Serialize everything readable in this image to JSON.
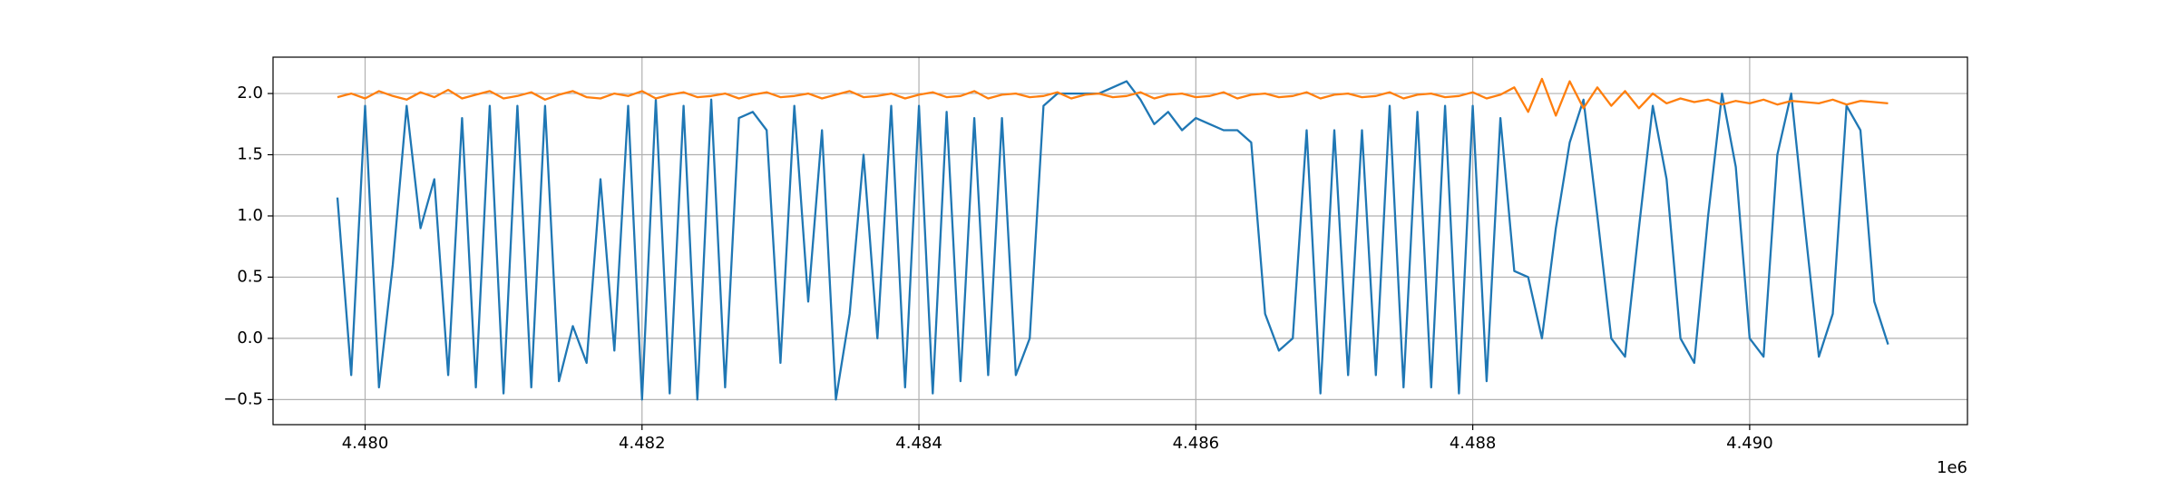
{
  "chart_data": {
    "type": "line",
    "x": [
      4479800,
      4479900,
      4480000,
      4480100,
      4480200,
      4480300,
      4480400,
      4480500,
      4480600,
      4480700,
      4480800,
      4480900,
      4481000,
      4481100,
      4481200,
      4481300,
      4481400,
      4481500,
      4481600,
      4481700,
      4481800,
      4481900,
      4482000,
      4482100,
      4482200,
      4482300,
      4482400,
      4482500,
      4482600,
      4482700,
      4482800,
      4482900,
      4483000,
      4483100,
      4483200,
      4483300,
      4483400,
      4483500,
      4483600,
      4483700,
      4483800,
      4483900,
      4484000,
      4484100,
      4484200,
      4484300,
      4484400,
      4484500,
      4484600,
      4484700,
      4484800,
      4484900,
      4485000,
      4485100,
      4485200,
      4485300,
      4485400,
      4485500,
      4485600,
      4485700,
      4485800,
      4485900,
      4486000,
      4486100,
      4486200,
      4486300,
      4486400,
      4486500,
      4486600,
      4486700,
      4486800,
      4486900,
      4487000,
      4487100,
      4487200,
      4487300,
      4487400,
      4487500,
      4487600,
      4487700,
      4487800,
      4487900,
      4488000,
      4488100,
      4488200,
      4488300,
      4488400,
      4488500,
      4488600,
      4488700,
      4488800,
      4488900,
      4489000,
      4489100,
      4489200,
      4489300,
      4489400,
      4489500,
      4489600,
      4489700,
      4489800,
      4489900,
      4490000,
      4490100,
      4490200,
      4490300,
      4490400,
      4490500,
      4490600,
      4490700,
      4490800,
      4490900,
      4491000
    ],
    "series": [
      {
        "color": "#1f77b4",
        "values": [
          1.15,
          -0.3,
          1.9,
          -0.4,
          0.6,
          1.9,
          0.9,
          1.3,
          -0.3,
          1.8,
          -0.4,
          1.9,
          -0.45,
          1.9,
          -0.4,
          1.9,
          -0.35,
          0.1,
          -0.2,
          1.3,
          -0.1,
          1.9,
          -0.5,
          1.95,
          -0.45,
          1.9,
          -0.5,
          1.95,
          -0.4,
          1.8,
          1.85,
          1.7,
          -0.2,
          1.9,
          0.3,
          1.7,
          -0.5,
          0.2,
          1.5,
          0.0,
          1.9,
          -0.4,
          1.9,
          -0.45,
          1.85,
          -0.35,
          1.8,
          -0.3,
          1.8,
          -0.3,
          0.0,
          1.9,
          2.0,
          2.0,
          2.0,
          2.0,
          2.05,
          2.1,
          1.95,
          1.75,
          1.85,
          1.7,
          1.8,
          1.75,
          1.7,
          1.7,
          1.6,
          0.2,
          -0.1,
          0.0,
          1.7,
          -0.45,
          1.7,
          -0.3,
          1.7,
          -0.3,
          1.9,
          -0.4,
          1.85,
          -0.4,
          1.9,
          -0.45,
          1.9,
          -0.35,
          1.8,
          0.55,
          0.5,
          0.0,
          0.9,
          1.6,
          1.95,
          1.0,
          0.0,
          -0.15,
          0.9,
          1.9,
          1.3,
          0.0,
          -0.2,
          1.0,
          2.0,
          1.4,
          0.0,
          -0.15,
          1.5,
          2.0,
          0.9,
          -0.15,
          0.2,
          1.9,
          1.7,
          0.3,
          -0.05
        ]
      },
      {
        "color": "#ff7f0e",
        "values": [
          1.97,
          2.0,
          1.96,
          2.02,
          1.98,
          1.95,
          2.01,
          1.97,
          2.03,
          1.96,
          1.99,
          2.02,
          1.96,
          1.98,
          2.01,
          1.95,
          1.99,
          2.02,
          1.97,
          1.96,
          2.0,
          1.98,
          2.02,
          1.96,
          1.99,
          2.01,
          1.97,
          1.98,
          2.0,
          1.96,
          1.99,
          2.01,
          1.97,
          1.98,
          2.0,
          1.96,
          1.99,
          2.02,
          1.97,
          1.98,
          2.0,
          1.96,
          1.99,
          2.01,
          1.97,
          1.98,
          2.02,
          1.96,
          1.99,
          2.0,
          1.97,
          1.98,
          2.01,
          1.96,
          1.99,
          2.0,
          1.97,
          1.98,
          2.01,
          1.96,
          1.99,
          2.0,
          1.97,
          1.98,
          2.01,
          1.96,
          1.99,
          2.0,
          1.97,
          1.98,
          2.01,
          1.96,
          1.99,
          2.0,
          1.97,
          1.98,
          2.01,
          1.96,
          1.99,
          2.0,
          1.97,
          1.98,
          2.01,
          1.96,
          1.99,
          2.05,
          1.85,
          2.12,
          1.82,
          2.1,
          1.88,
          2.05,
          1.9,
          2.02,
          1.88,
          2.0,
          1.92,
          1.96,
          1.93,
          1.95,
          1.91,
          1.94,
          1.92,
          1.95,
          1.91,
          1.94,
          1.93,
          1.92,
          1.95,
          1.91,
          1.94,
          1.93,
          1.92
        ]
      }
    ],
    "xlim": [
      4479335,
      4491573
    ],
    "ylim": [
      -0.705,
      2.297
    ],
    "xticks": [
      {
        "value": 4480000,
        "label": "4.480"
      },
      {
        "value": 4482000,
        "label": "4.482"
      },
      {
        "value": 4484000,
        "label": "4.484"
      },
      {
        "value": 4486000,
        "label": "4.486"
      },
      {
        "value": 4488000,
        "label": "4.488"
      },
      {
        "value": 4490000,
        "label": "4.490"
      }
    ],
    "x_offset_label": "1e6",
    "yticks": [
      {
        "value": -0.5,
        "label": "−0.5"
      },
      {
        "value": 0,
        "label": "0.0"
      },
      {
        "value": 0.5,
        "label": "0.5"
      },
      {
        "value": 1,
        "label": "1.0"
      },
      {
        "value": 1.5,
        "label": "1.5"
      },
      {
        "value": 2,
        "label": "2.0"
      }
    ],
    "grid": true
  }
}
